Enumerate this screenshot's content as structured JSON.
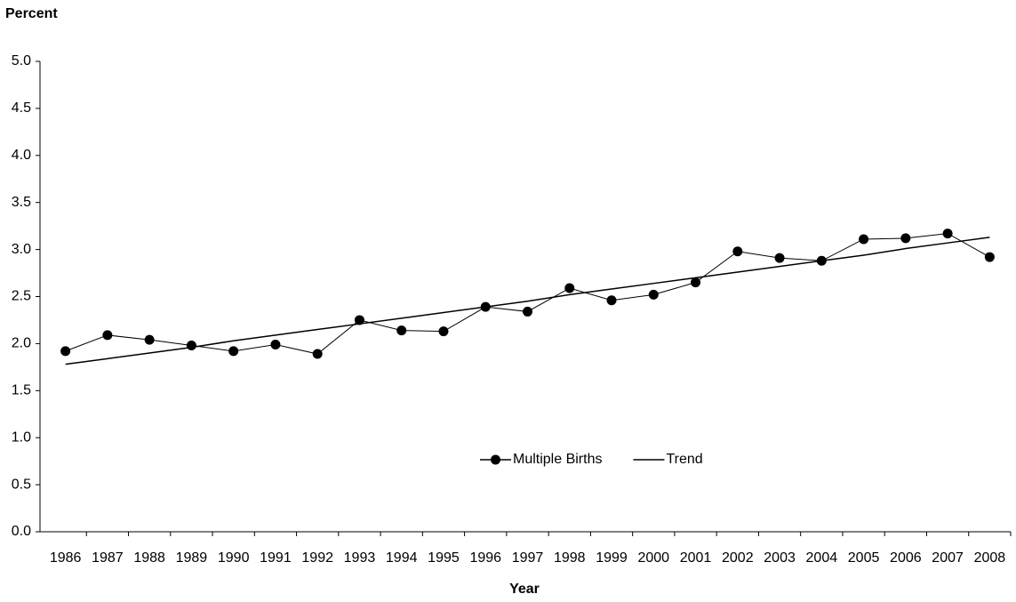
{
  "chart_data": {
    "type": "line",
    "y_label": "Percent",
    "x_label": "Year",
    "categories": [
      "1986",
      "1987",
      "1988",
      "1989",
      "1990",
      "1991",
      "1992",
      "1993",
      "1994",
      "1995",
      "1996",
      "1997",
      "1998",
      "1999",
      "2000",
      "2001",
      "2002",
      "2003",
      "2004",
      "2005",
      "2006",
      "2007",
      "2008"
    ],
    "series": [
      {
        "name": "Multiple Births",
        "color": "#000000",
        "marker": true,
        "values": [
          1.92,
          2.09,
          2.04,
          1.98,
          1.92,
          1.99,
          1.89,
          2.25,
          2.14,
          2.13,
          2.39,
          2.34,
          2.59,
          2.46,
          2.52,
          2.65,
          2.98,
          2.91,
          2.88,
          3.11,
          3.12,
          3.17,
          2.92
        ]
      },
      {
        "name": "Trend",
        "color": "#000000",
        "marker": false,
        "values": [
          1.78,
          1.84,
          1.9,
          1.96,
          2.03,
          2.09,
          2.15,
          2.21,
          2.27,
          2.33,
          2.39,
          2.45,
          2.52,
          2.58,
          2.64,
          2.7,
          2.76,
          2.82,
          2.88,
          2.94,
          3.01,
          3.07,
          3.13
        ]
      }
    ],
    "ylim": [
      0,
      5
    ],
    "yticks": [
      {
        "value": 0,
        "label": "0.0"
      },
      0.5,
      {
        "value": 1,
        "label": "1.0"
      },
      1.5,
      {
        "value": 2,
        "label": "2.0"
      },
      2.5,
      {
        "value": 3,
        "label": "3.0"
      },
      3.5,
      {
        "value": 4,
        "label": "4.0"
      },
      4.5,
      {
        "value": 5,
        "label": "5.0"
      }
    ],
    "grid": false,
    "legend": "center"
  }
}
